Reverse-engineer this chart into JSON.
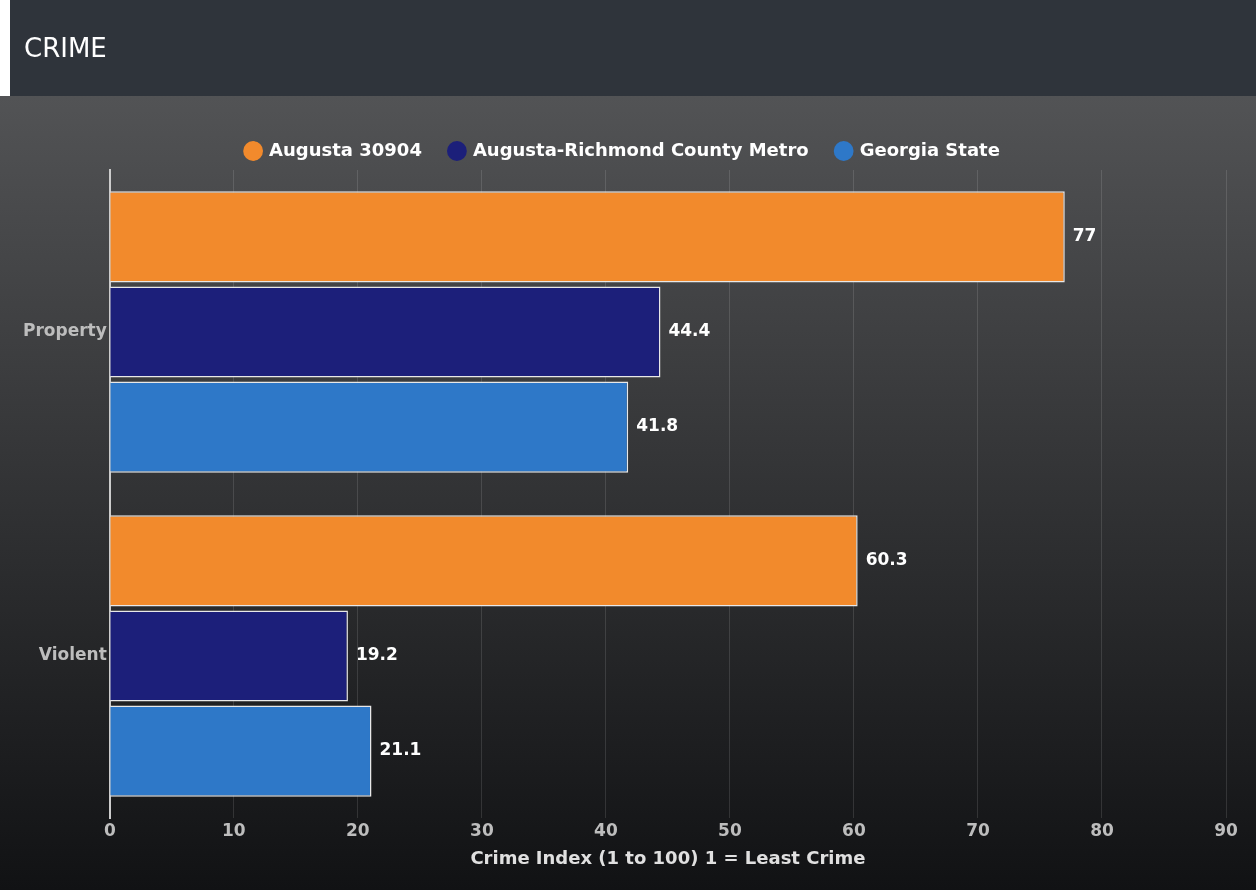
{
  "chart_data": {
    "type": "bar",
    "title": "CRIME",
    "orientation": "horizontal",
    "categories": [
      "Property",
      "Violent"
    ],
    "series": [
      {
        "name": "Augusta 30904",
        "color": "#f28a2c",
        "values": [
          77,
          60.3
        ]
      },
      {
        "name": "Augusta-Richmond County Metro",
        "color": "#1c1f7a",
        "values": [
          44.4,
          19.2
        ]
      },
      {
        "name": "Georgia State",
        "color": "#2e78c8",
        "values": [
          41.8,
          21.1
        ]
      }
    ],
    "xlabel": "Crime Index (1 to 100) 1 = Least Crime",
    "xlim": [
      0,
      90
    ],
    "xticks": [
      0,
      10,
      20,
      30,
      40,
      50,
      60,
      70,
      80,
      90
    ],
    "grid": "x",
    "legend": "top",
    "data_labels": true
  }
}
